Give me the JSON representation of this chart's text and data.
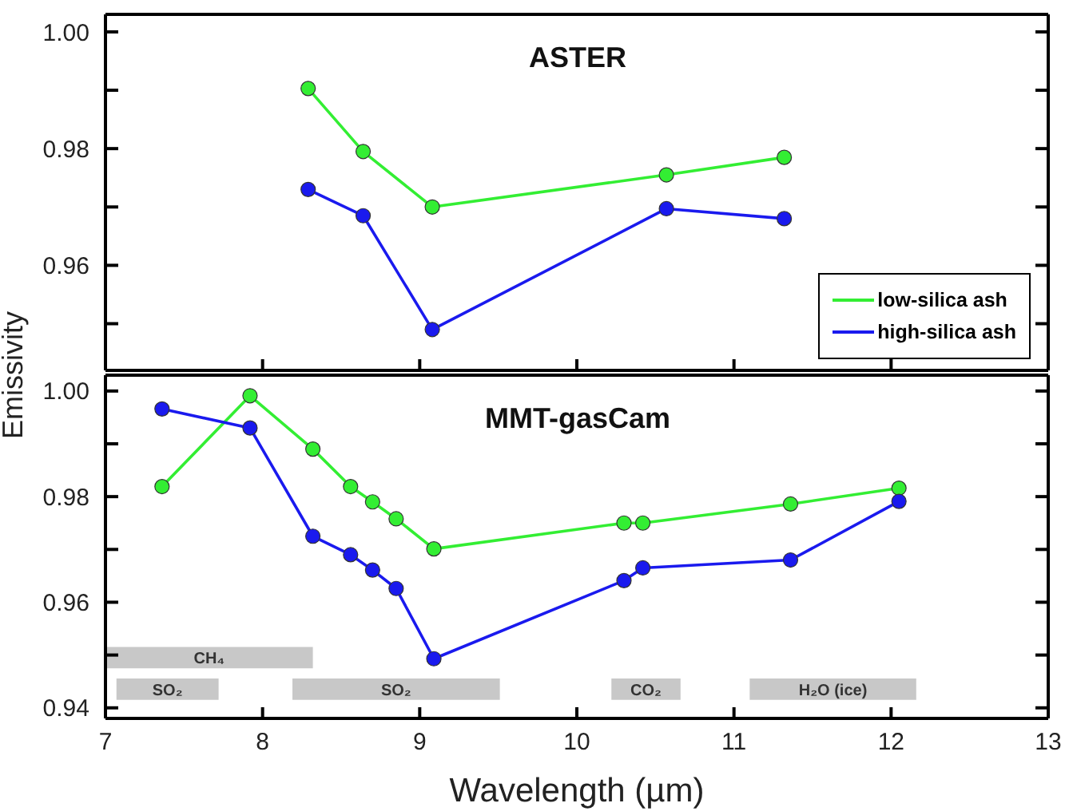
{
  "chart_data": [
    {
      "type": "line",
      "title": "ASTER",
      "ylabel": "Emissivity",
      "xlim": [
        7,
        13
      ],
      "xticks": [
        7,
        8,
        9,
        10,
        11,
        12,
        13
      ],
      "ylim": [
        0.942,
        1.003
      ],
      "yticks": [
        {
          "value": 0.95,
          "label": null
        },
        0.96,
        {
          "value": 0.97,
          "label": null
        },
        0.98,
        {
          "value": 0.99,
          "label": null
        },
        {
          "value": 1,
          "label": "1.00"
        }
      ],
      "tick_labels": "y",
      "grid": false,
      "legend": "bottom right",
      "marker": "circle",
      "line_style": "solid",
      "series": [
        {
          "name": "low-silica ash",
          "color": "#33ee33",
          "x": [
            8.29,
            8.64,
            9.08,
            10.57,
            11.32
          ],
          "values": [
            0.9903,
            0.9795,
            0.97,
            0.9755,
            0.9785
          ]
        },
        {
          "name": "high-silica ash",
          "color": "#1a1aee",
          "x": [
            8.29,
            8.64,
            9.08,
            10.57,
            11.32
          ],
          "values": [
            0.973,
            0.9685,
            0.949,
            0.9697,
            0.968
          ]
        }
      ]
    },
    {
      "type": "line",
      "title": "MMT-gasCam",
      "xlabel": "Wavelength (µm)",
      "xlim": [
        7,
        13
      ],
      "xticks": [
        7,
        8,
        9,
        10,
        11,
        12,
        13
      ],
      "ylim": [
        0.938,
        1.003
      ],
      "yticks": [
        0.94,
        {
          "value": 0.95,
          "label": null
        },
        0.96,
        {
          "value": 0.97,
          "label": null
        },
        0.98,
        {
          "value": 0.99,
          "label": null
        },
        {
          "value": 1,
          "label": "1.00"
        }
      ],
      "grid": false,
      "legend": false,
      "marker": "circle",
      "line_style": "solid",
      "series": [
        {
          "color": "#33ee33",
          "x": [
            7.36,
            7.92,
            8.32,
            8.56,
            8.7,
            8.85,
            9.09,
            10.3,
            10.42,
            11.36,
            12.05
          ],
          "values": [
            0.9819,
            0.9991,
            0.989,
            0.9819,
            0.979,
            0.9758,
            0.9701,
            0.975,
            0.975,
            0.9786,
            0.9816
          ]
        },
        {
          "color": "#1a1aee",
          "x": [
            7.36,
            7.92,
            8.32,
            8.56,
            8.7,
            8.85,
            9.09,
            10.3,
            10.42,
            11.36,
            12.05
          ],
          "values": [
            0.9966,
            0.993,
            0.9725,
            0.969,
            0.9661,
            0.9626,
            0.9493,
            0.9641,
            0.9665,
            0.968,
            0.9791
          ]
        }
      ],
      "bands": [
        {
          "axis": "x",
          "from": 7.07,
          "to": 7.72,
          "label": "SO₂",
          "color": "#c8c8c8"
        },
        {
          "axis": "x",
          "from": 8.19,
          "to": 9.51,
          "label": "SO₂",
          "color": "#c8c8c8"
        },
        {
          "axis": "x",
          "from": 10.22,
          "to": 10.66,
          "label": "CO₂",
          "color": "#c8c8c8"
        },
        {
          "axis": "x",
          "from": 11.1,
          "to": 12.16,
          "label": "H₂O (ice)",
          "color": "#c8c8c8"
        },
        {
          "axis": "x",
          "from": 7.0,
          "to": 8.32,
          "label": "CH₄",
          "color": "#c8c8c8"
        }
      ]
    }
  ]
}
